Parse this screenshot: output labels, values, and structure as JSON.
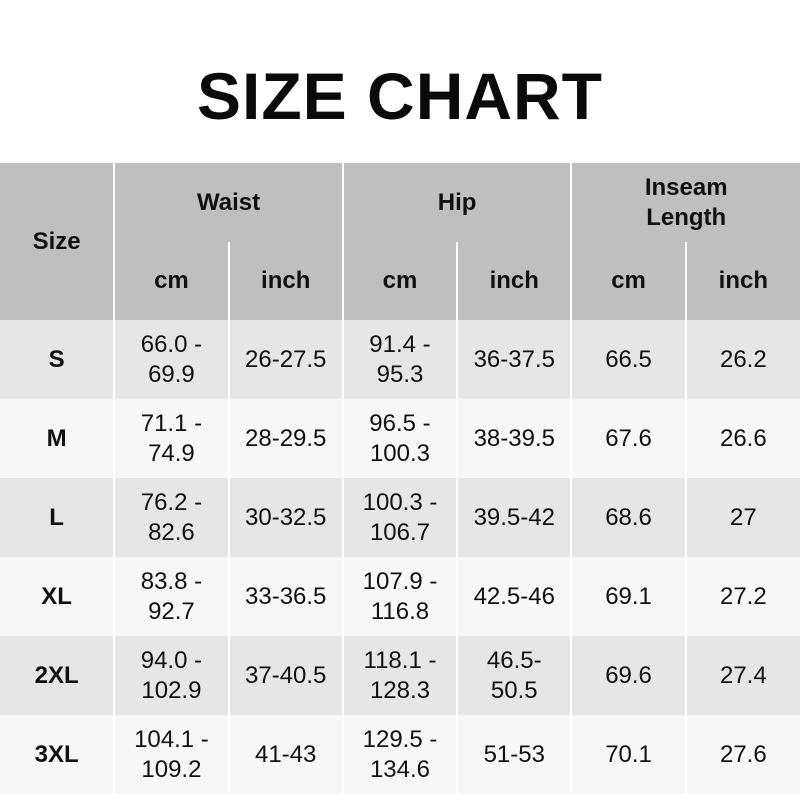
{
  "title": "SIZE CHART",
  "headers": {
    "size": "Size",
    "waist": "Waist",
    "hip": "Hip",
    "inseam": "Inseam\nLength",
    "cm": "cm",
    "inch": "inch"
  },
  "colors": {
    "header_bg": "#bfbfbf",
    "row_odd": "#e6e6e6",
    "row_even": "#f7f7f7"
  },
  "rows": [
    {
      "size": "S",
      "waist_cm": "66.0 -\n69.9",
      "waist_in": "26-27.5",
      "hip_cm": "91.4 -\n95.3",
      "hip_in": "36-37.5",
      "inseam_cm": "66.5",
      "inseam_in": "26.2"
    },
    {
      "size": "M",
      "waist_cm": "71.1 -\n74.9",
      "waist_in": "28-29.5",
      "hip_cm": "96.5 -\n100.3",
      "hip_in": "38-39.5",
      "inseam_cm": "67.6",
      "inseam_in": "26.6"
    },
    {
      "size": "L",
      "waist_cm": "76.2 -\n82.6",
      "waist_in": "30-32.5",
      "hip_cm": "100.3 -\n106.7",
      "hip_in": "39.5-42",
      "inseam_cm": "68.6",
      "inseam_in": "27"
    },
    {
      "size": "XL",
      "waist_cm": "83.8 -\n92.7",
      "waist_in": "33-36.5",
      "hip_cm": "107.9 -\n116.8",
      "hip_in": "42.5-46",
      "inseam_cm": "69.1",
      "inseam_in": "27.2"
    },
    {
      "size": "2XL",
      "waist_cm": "94.0 -\n102.9",
      "waist_in": "37-40.5",
      "hip_cm": "118.1 -\n128.3",
      "hip_in": "46.5-\n50.5",
      "inseam_cm": "69.6",
      "inseam_in": "27.4"
    },
    {
      "size": "3XL",
      "waist_cm": "104.1 -\n109.2",
      "waist_in": "41-43",
      "hip_cm": "129.5 -\n134.6",
      "hip_in": "51-53",
      "inseam_cm": "70.1",
      "inseam_in": "27.6"
    }
  ]
}
